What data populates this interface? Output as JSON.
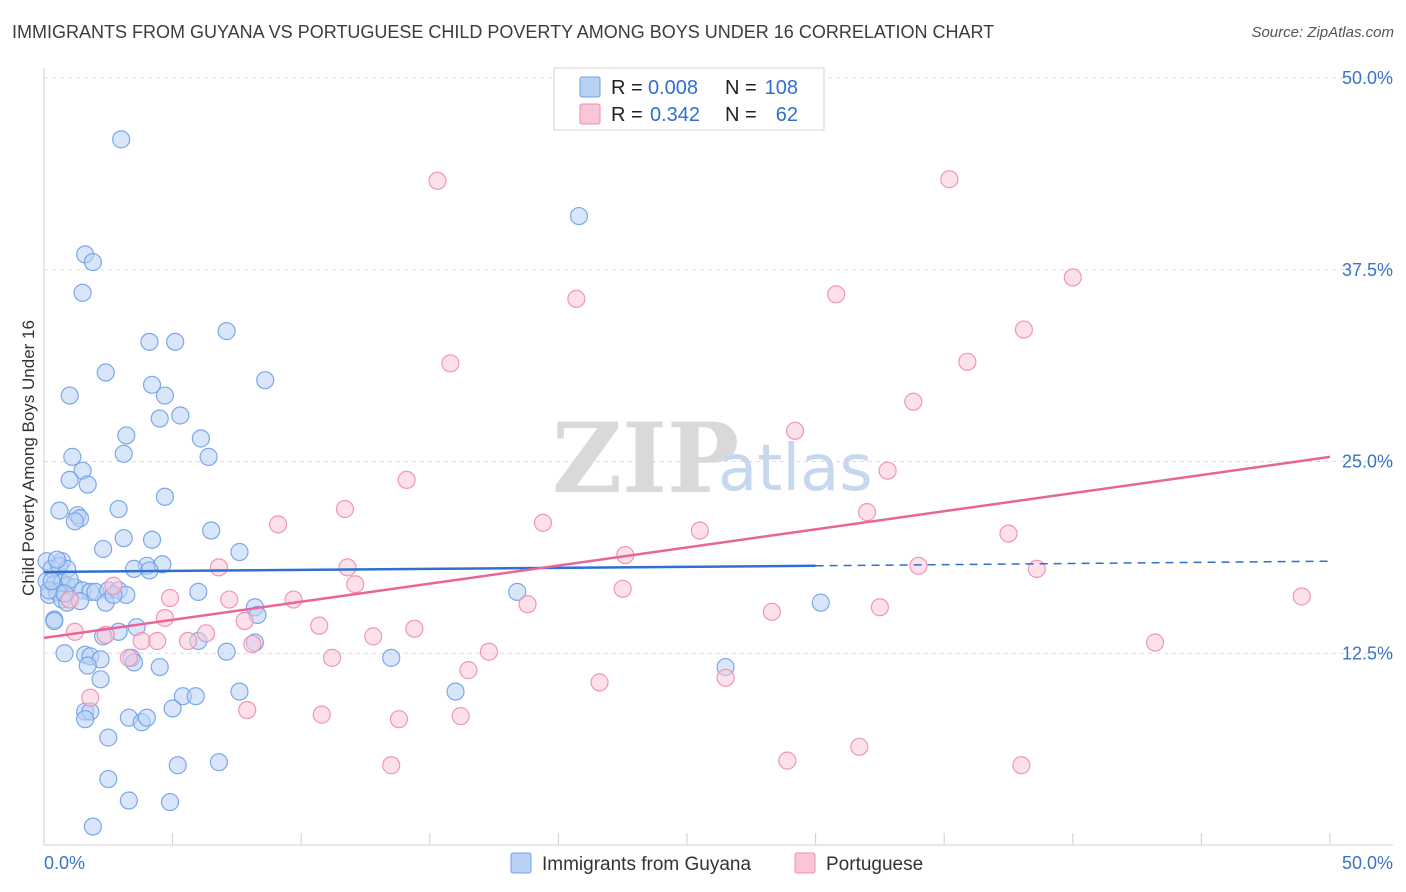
{
  "title": "IMMIGRANTS FROM GUYANA VS PORTUGUESE CHILD POVERTY AMONG BOYS UNDER 16 CORRELATION CHART",
  "source": "Source: ZipAtlas.com",
  "watermark": {
    "zip": "ZIP",
    "atlas": "atlas"
  },
  "legend": {
    "r_label": "R =",
    "n_label": "N =",
    "rows": [
      {
        "r": "0.008",
        "n": "108"
      },
      {
        "r": "0.342",
        "n": "62"
      }
    ]
  },
  "colors": {
    "guyana": "#6fa0e8",
    "guyana_fill": "#b9d1f4",
    "guyana_line": "#2f6fd0",
    "portuguese": "#f08cb0",
    "portuguese_fill": "#f9c6d8",
    "portuguese_line": "#e8649a"
  },
  "chart_data": {
    "type": "scatter",
    "title": "IMMIGRANTS FROM GUYANA VS PORTUGUESE CHILD POVERTY AMONG BOYS UNDER 16 CORRELATION CHART",
    "xlabel": "",
    "ylabel": "Child Poverty Among Boys Under 16",
    "xlim": [
      0,
      50
    ],
    "ylim": [
      0,
      50
    ],
    "x_tick_labels": [
      "0.0%",
      "50.0%"
    ],
    "y_ticks": [
      12.5,
      25.0,
      37.5,
      50.0
    ],
    "y_tick_labels": [
      "12.5%",
      "25.0%",
      "37.5%",
      "50.0%"
    ],
    "series": [
      {
        "name": "Immigrants from Guyana",
        "points": [
          [
            3.0,
            46.0
          ],
          [
            20.8,
            41.0
          ],
          [
            1.6,
            38.5
          ],
          [
            1.9,
            38.0
          ],
          [
            1.5,
            36.0
          ],
          [
            7.1,
            33.5
          ],
          [
            4.1,
            32.8
          ],
          [
            5.1,
            32.8
          ],
          [
            2.4,
            30.8
          ],
          [
            8.6,
            30.3
          ],
          [
            4.2,
            30.0
          ],
          [
            1.0,
            29.3
          ],
          [
            4.7,
            29.3
          ],
          [
            4.5,
            27.8
          ],
          [
            5.3,
            28.0
          ],
          [
            3.2,
            26.7
          ],
          [
            6.1,
            26.5
          ],
          [
            3.1,
            25.5
          ],
          [
            6.4,
            25.3
          ],
          [
            1.1,
            25.3
          ],
          [
            1.5,
            24.4
          ],
          [
            1.7,
            23.5
          ],
          [
            1.0,
            23.8
          ],
          [
            4.7,
            22.7
          ],
          [
            0.6,
            21.8
          ],
          [
            2.9,
            21.9
          ],
          [
            1.3,
            21.5
          ],
          [
            1.4,
            21.3
          ],
          [
            1.2,
            21.1
          ],
          [
            6.5,
            20.5
          ],
          [
            3.1,
            20.0
          ],
          [
            4.2,
            19.9
          ],
          [
            2.3,
            19.3
          ],
          [
            7.6,
            19.1
          ],
          [
            0.1,
            18.5
          ],
          [
            0.7,
            18.5
          ],
          [
            0.3,
            18.0
          ],
          [
            0.6,
            18.2
          ],
          [
            0.9,
            18.0
          ],
          [
            4.0,
            18.2
          ],
          [
            3.5,
            18.0
          ],
          [
            4.6,
            18.3
          ],
          [
            4.1,
            17.9
          ],
          [
            0.1,
            17.2
          ],
          [
            0.4,
            17.0
          ],
          [
            0.7,
            17.1
          ],
          [
            0.9,
            16.9
          ],
          [
            1.2,
            16.8
          ],
          [
            1.5,
            16.6
          ],
          [
            1.8,
            16.5
          ],
          [
            2.0,
            16.5
          ],
          [
            2.5,
            16.6
          ],
          [
            2.9,
            16.6
          ],
          [
            3.2,
            16.3
          ],
          [
            0.2,
            16.3
          ],
          [
            0.5,
            16.5
          ],
          [
            0.7,
            16.0
          ],
          [
            0.9,
            15.8
          ],
          [
            2.4,
            15.8
          ],
          [
            6.0,
            16.5
          ],
          [
            18.4,
            16.5
          ],
          [
            8.2,
            15.5
          ],
          [
            8.3,
            15.0
          ],
          [
            30.2,
            15.8
          ],
          [
            0.4,
            14.7
          ],
          [
            3.6,
            14.2
          ],
          [
            2.9,
            13.9
          ],
          [
            2.3,
            13.6
          ],
          [
            6.0,
            13.3
          ],
          [
            8.2,
            13.2
          ],
          [
            0.4,
            14.6
          ],
          [
            0.8,
            12.5
          ],
          [
            1.6,
            12.4
          ],
          [
            1.8,
            12.3
          ],
          [
            2.2,
            12.1
          ],
          [
            3.4,
            12.2
          ],
          [
            3.5,
            11.9
          ],
          [
            4.5,
            11.6
          ],
          [
            1.7,
            11.7
          ],
          [
            7.1,
            12.6
          ],
          [
            13.5,
            12.2
          ],
          [
            26.5,
            11.6
          ],
          [
            2.2,
            10.8
          ],
          [
            5.4,
            9.7
          ],
          [
            5.9,
            9.7
          ],
          [
            7.6,
            10.0
          ],
          [
            16.0,
            10.0
          ],
          [
            5.0,
            8.9
          ],
          [
            1.6,
            8.7
          ],
          [
            1.8,
            8.7
          ],
          [
            3.3,
            8.3
          ],
          [
            1.6,
            8.2
          ],
          [
            3.8,
            8.0
          ],
          [
            4.0,
            8.3
          ],
          [
            2.5,
            7.0
          ],
          [
            5.2,
            5.2
          ],
          [
            6.8,
            5.4
          ],
          [
            2.5,
            4.3
          ],
          [
            3.3,
            2.9
          ],
          [
            4.9,
            2.8
          ],
          [
            1.9,
            1.2
          ],
          [
            0.2,
            16.6
          ],
          [
            0.3,
            17.2
          ],
          [
            0.5,
            18.6
          ],
          [
            1.0,
            17.3
          ],
          [
            1.4,
            15.9
          ],
          [
            0.8,
            16.4
          ],
          [
            2.7,
            16.3
          ]
        ]
      },
      {
        "name": "Portuguese",
        "points": [
          [
            15.3,
            43.3
          ],
          [
            35.2,
            43.4
          ],
          [
            40.0,
            37.0
          ],
          [
            20.7,
            35.6
          ],
          [
            30.8,
            35.9
          ],
          [
            38.1,
            33.6
          ],
          [
            15.8,
            31.4
          ],
          [
            35.9,
            31.5
          ],
          [
            33.8,
            28.9
          ],
          [
            29.2,
            27.0
          ],
          [
            32.8,
            24.4
          ],
          [
            14.1,
            23.8
          ],
          [
            11.7,
            21.9
          ],
          [
            9.1,
            20.9
          ],
          [
            19.4,
            21.0
          ],
          [
            25.5,
            20.5
          ],
          [
            37.5,
            20.3
          ],
          [
            32.0,
            21.7
          ],
          [
            22.6,
            18.9
          ],
          [
            11.8,
            18.1
          ],
          [
            6.8,
            18.1
          ],
          [
            34.0,
            18.2
          ],
          [
            38.6,
            18.0
          ],
          [
            2.7,
            16.9
          ],
          [
            12.1,
            17.0
          ],
          [
            22.5,
            16.7
          ],
          [
            1.0,
            16.0
          ],
          [
            4.9,
            16.1
          ],
          [
            7.2,
            16.0
          ],
          [
            9.7,
            16.0
          ],
          [
            18.8,
            15.7
          ],
          [
            28.3,
            15.2
          ],
          [
            32.5,
            15.5
          ],
          [
            48.9,
            16.2
          ],
          [
            4.7,
            14.8
          ],
          [
            7.8,
            14.6
          ],
          [
            10.7,
            14.3
          ],
          [
            14.4,
            14.1
          ],
          [
            1.2,
            13.9
          ],
          [
            2.4,
            13.7
          ],
          [
            3.8,
            13.3
          ],
          [
            5.6,
            13.3
          ],
          [
            6.3,
            13.8
          ],
          [
            8.1,
            13.1
          ],
          [
            12.8,
            13.6
          ],
          [
            3.3,
            12.2
          ],
          [
            4.4,
            13.3
          ],
          [
            11.2,
            12.2
          ],
          [
            17.3,
            12.6
          ],
          [
            16.5,
            11.4
          ],
          [
            43.2,
            13.2
          ],
          [
            21.6,
            10.6
          ],
          [
            26.5,
            10.9
          ],
          [
            7.9,
            8.8
          ],
          [
            10.8,
            8.5
          ],
          [
            16.2,
            8.4
          ],
          [
            13.8,
            8.2
          ],
          [
            31.7,
            6.4
          ],
          [
            13.5,
            5.2
          ],
          [
            28.9,
            5.5
          ],
          [
            38.0,
            5.2
          ],
          [
            1.8,
            9.6
          ]
        ]
      }
    ],
    "trend_lines": [
      {
        "series": "Immigrants from Guyana",
        "solid_from": [
          0,
          17.8
        ],
        "solid_to": [
          30.0,
          18.2
        ],
        "dashed_to": [
          50,
          18.5
        ]
      },
      {
        "series": "Portuguese",
        "from": [
          0,
          13.5
        ],
        "to": [
          50,
          25.3
        ]
      }
    ]
  }
}
